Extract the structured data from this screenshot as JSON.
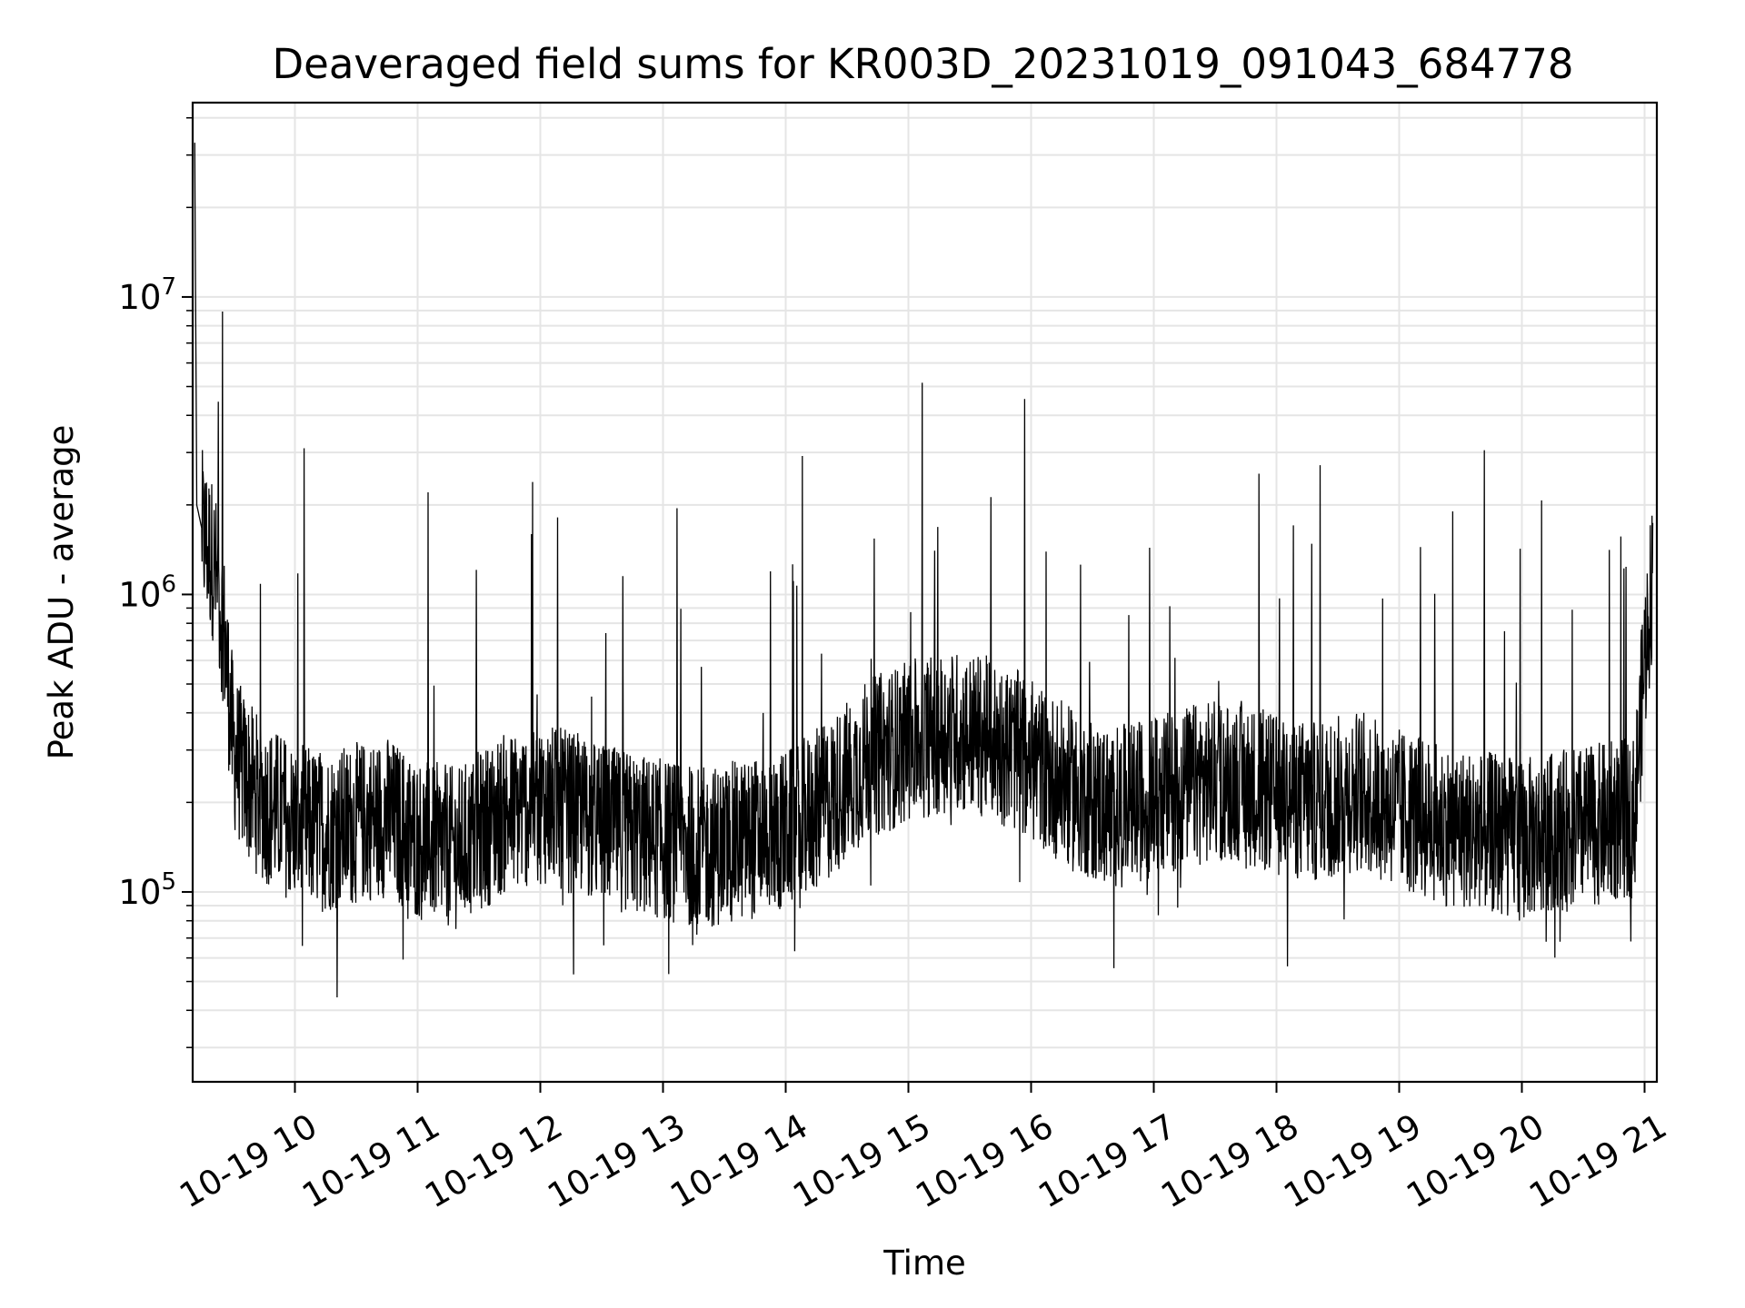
{
  "chart_data": {
    "type": "line",
    "title": "Deaveraged field sums for KR003D_20231019_091043_684778",
    "xlabel": "Time",
    "ylabel": "Peak ADU - average",
    "yscale": "log",
    "ylim": [
      23000,
      45000000
    ],
    "xlim": [
      "2023-10-19 09:10",
      "2023-10-19 21:06"
    ],
    "grid": true,
    "line_color": "#000000",
    "grid_color": "#e5e5e5",
    "xtick_labels": [
      "10-19 10",
      "10-19 11",
      "10-19 12",
      "10-19 13",
      "10-19 14",
      "10-19 15",
      "10-19 16",
      "10-19 17",
      "10-19 18",
      "10-19 19",
      "10-19 20",
      "10-19 21"
    ],
    "xtick_times": [
      "2023-10-19 10:00",
      "2023-10-19 11:00",
      "2023-10-19 12:00",
      "2023-10-19 13:00",
      "2023-10-19 14:00",
      "2023-10-19 15:00",
      "2023-10-19 16:00",
      "2023-10-19 17:00",
      "2023-10-19 18:00",
      "2023-10-19 19:00",
      "2023-10-19 20:00",
      "2023-10-19 21:00"
    ],
    "ytick_base": "10",
    "ytick_exponents": [
      "5",
      "6",
      "7"
    ],
    "series": [
      {
        "x": [
          "2023-10-19 09:11",
          "2023-10-19 09:12",
          "2023-10-19 09:15",
          "2023-10-19 09:20",
          "2023-10-19 09:25",
          "2023-10-19 09:30",
          "2023-10-19 09:35",
          "2023-10-19 09:40",
          "2023-10-19 09:45",
          "2023-10-19 09:50",
          "2023-10-19 09:55",
          "2023-10-19 10:00",
          "2023-10-19 10:15",
          "2023-10-19 10:30",
          "2023-10-19 10:45",
          "2023-10-19 11:00",
          "2023-10-19 11:20",
          "2023-10-19 11:40",
          "2023-10-19 12:00",
          "2023-10-19 12:20",
          "2023-10-19 12:40",
          "2023-10-19 13:00",
          "2023-10-19 13:20",
          "2023-10-19 13:40",
          "2023-10-19 14:00",
          "2023-10-19 14:20",
          "2023-10-19 14:40",
          "2023-10-19 15:00",
          "2023-10-19 15:20",
          "2023-10-19 15:40",
          "2023-10-19 16:00",
          "2023-10-19 16:20",
          "2023-10-19 16:40",
          "2023-10-19 17:00",
          "2023-10-19 17:20",
          "2023-10-19 17:40",
          "2023-10-19 18:00",
          "2023-10-19 18:20",
          "2023-10-19 18:40",
          "2023-10-19 19:00",
          "2023-10-19 19:20",
          "2023-10-19 19:40",
          "2023-10-19 20:00",
          "2023-10-19 20:20",
          "2023-10-19 20:40",
          "2023-10-19 20:55",
          "2023-10-19 21:00",
          "2023-10-19 21:04"
        ],
        "y": [
          33000000,
          2000000,
          1600000,
          1300000,
          800000,
          300000,
          250000,
          220000,
          200000,
          190000,
          180000,
          170000,
          160000,
          170000,
          180000,
          150000,
          140000,
          180000,
          200000,
          180000,
          160000,
          150000,
          140000,
          150000,
          160000,
          200000,
          280000,
          320000,
          350000,
          330000,
          280000,
          220000,
          190000,
          210000,
          230000,
          240000,
          210000,
          200000,
          220000,
          190000,
          170000,
          160000,
          150000,
          160000,
          170000,
          180000,
          600000,
          1200000
        ]
      }
    ]
  }
}
